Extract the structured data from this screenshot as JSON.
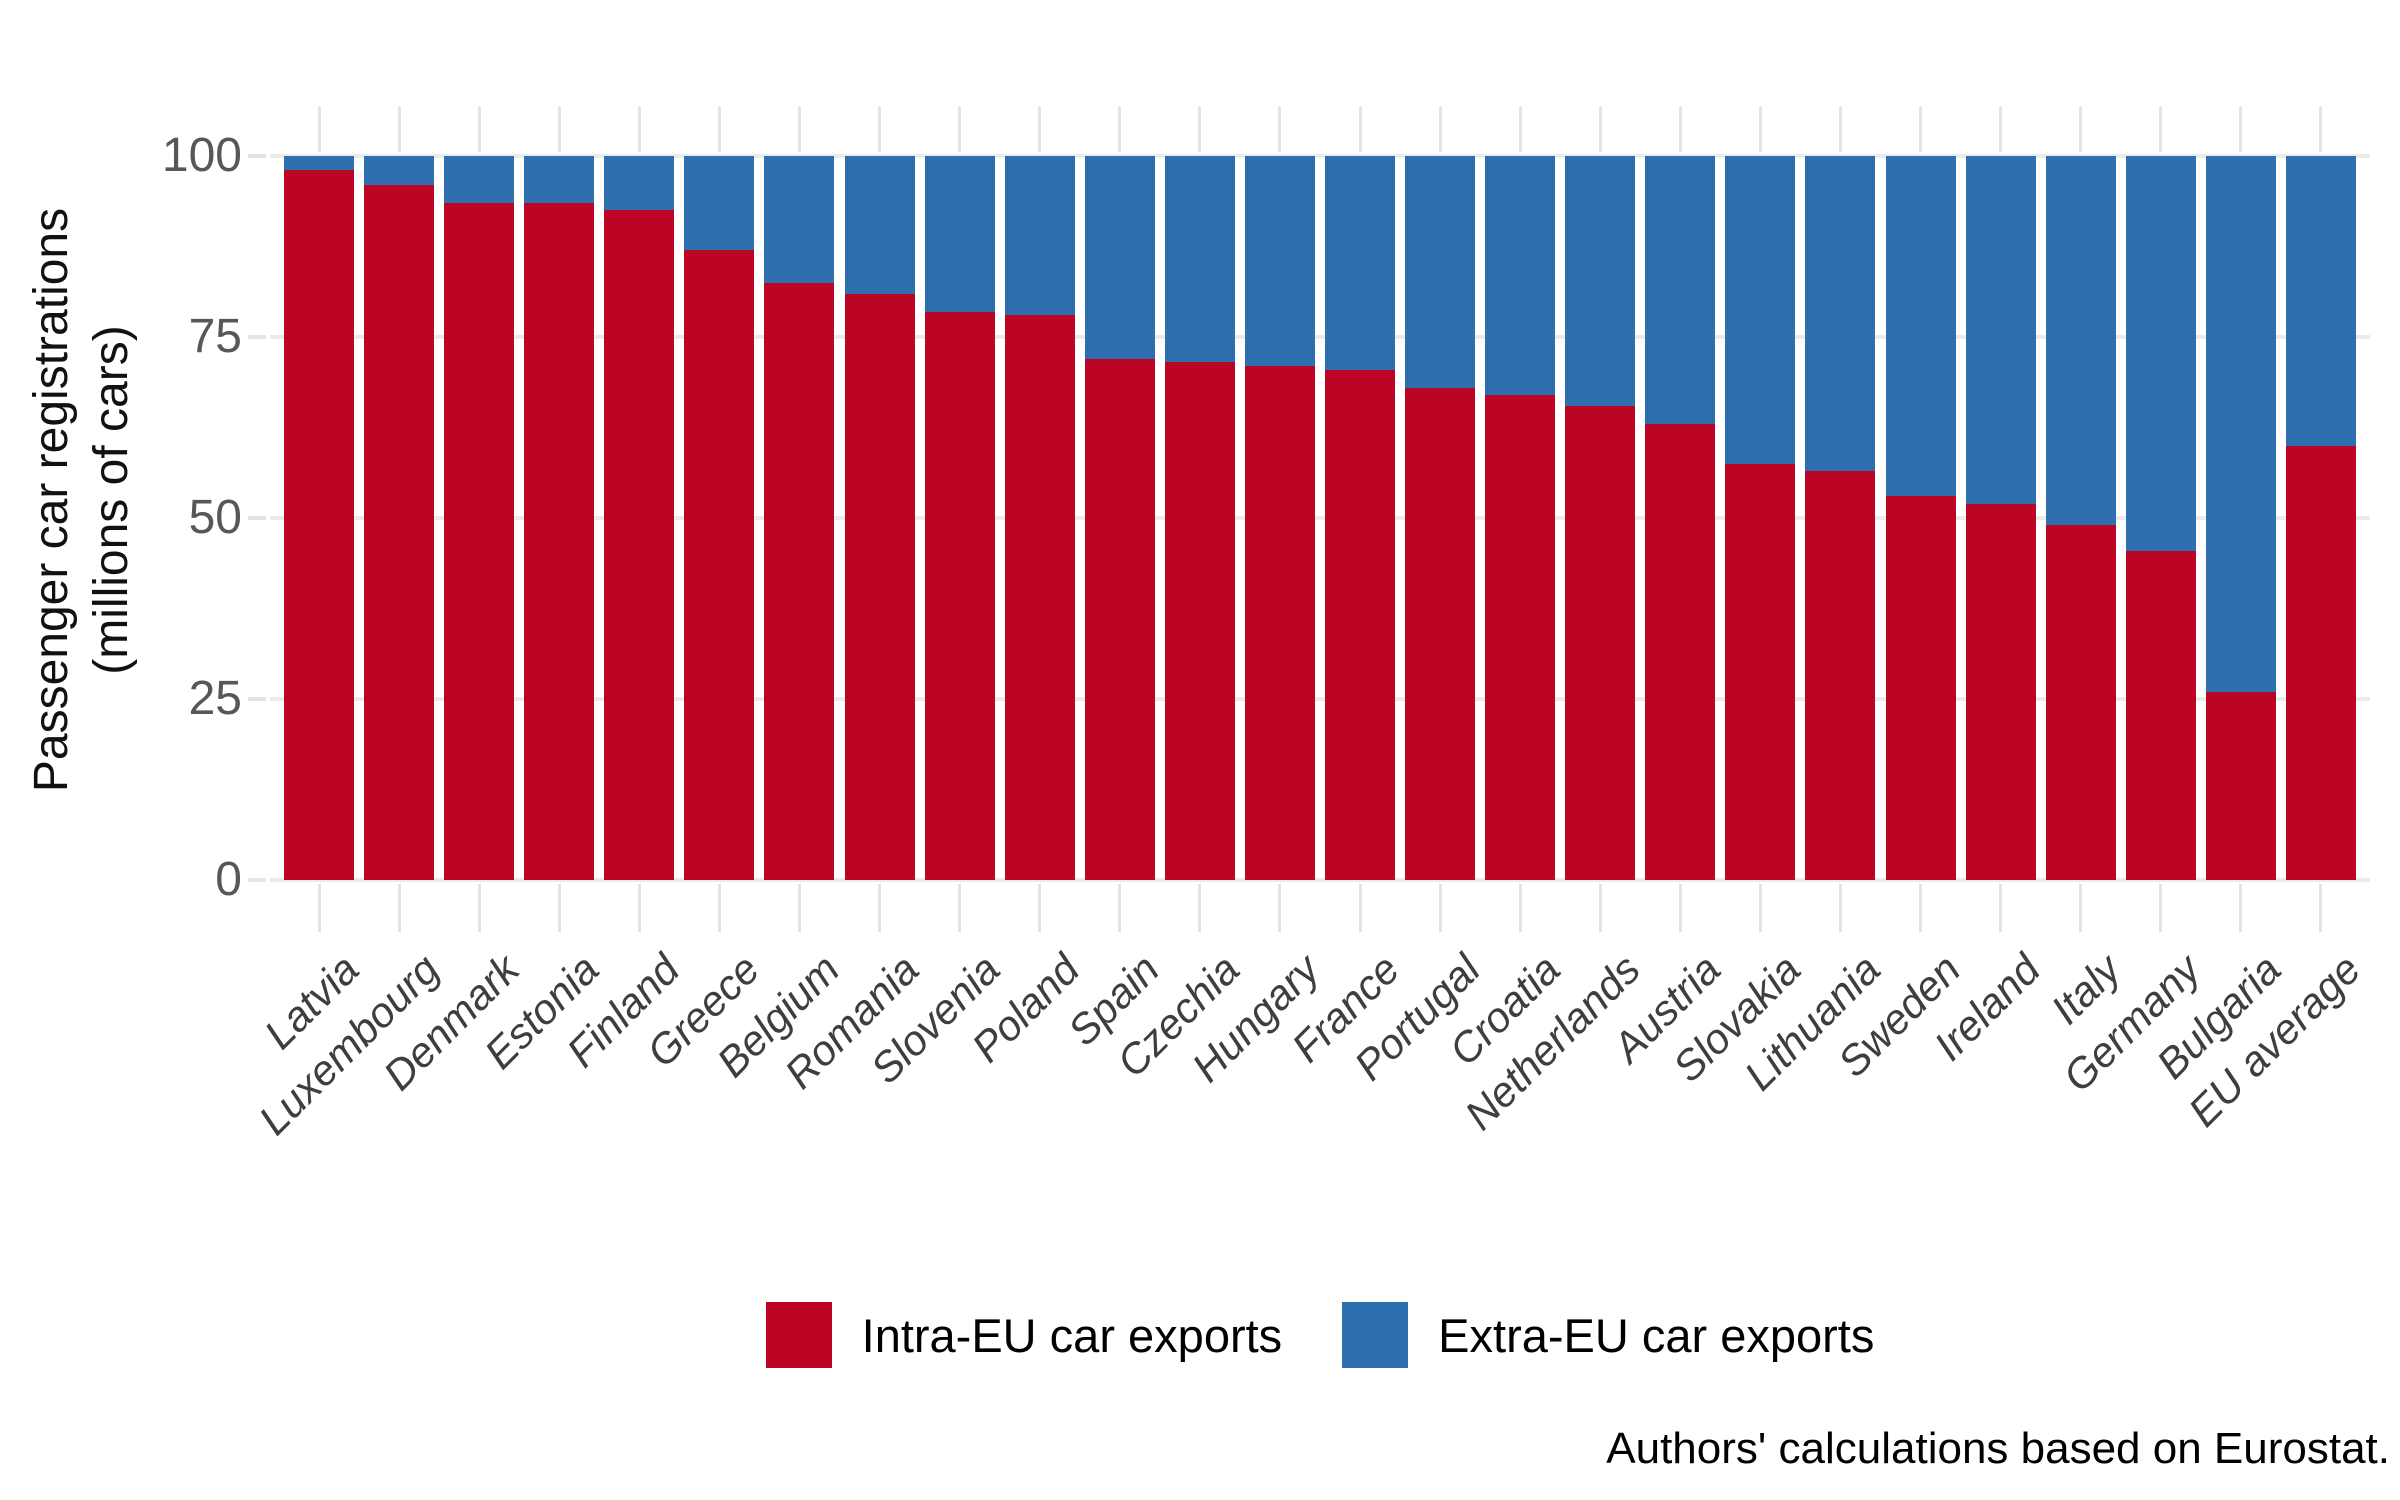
{
  "figure": {
    "background": "#ffffff",
    "grid_color": "#ebebeb",
    "tick_color": "#e4e4e4",
    "y_tick_label_color": "#575757",
    "x_label_color": "#3e3e3e",
    "y_title_color": "#111111"
  },
  "chart_data": {
    "type": "bar",
    "stacked": true,
    "orientation": "vertical",
    "title": "",
    "xlabel": "",
    "ylabel": "Passenger car registrations\n(millions of cars)",
    "ylim": [
      0,
      100
    ],
    "yticks": [
      0,
      25,
      50,
      75,
      100
    ],
    "grid": "horizontal",
    "legend_position": "bottom-center",
    "caption": "Authors' calculations based on Eurostat.",
    "categories": [
      "Latvia",
      "Luxembourg",
      "Denmark",
      "Estonia",
      "Finland",
      "Greece",
      "Belgium",
      "Romania",
      "Slovenia",
      "Poland",
      "Spain",
      "Czechia",
      "Hungary",
      "France",
      "Portugal",
      "Croatia",
      "Netherlands",
      "Austria",
      "Slovakia",
      "Lithuania",
      "Sweden",
      "Ireland",
      "Italy",
      "Germany",
      "Bulgaria",
      "EU average"
    ],
    "series": [
      {
        "name": "Intra-EU car exports",
        "color": "#bc0425",
        "values": [
          98,
          96,
          93.5,
          93.5,
          92.5,
          87,
          82.5,
          81,
          78.5,
          78,
          72,
          71.5,
          71,
          70.5,
          68,
          67,
          65.5,
          63,
          57.5,
          56.5,
          53,
          52,
          49,
          45.5,
          26,
          60
        ]
      },
      {
        "name": "Extra-EU car exports",
        "color": "#2e6fb0",
        "values": [
          2,
          4,
          6.5,
          6.5,
          7.5,
          13,
          17.5,
          19,
          21.5,
          22,
          28,
          28.5,
          29,
          29.5,
          32,
          33,
          34.5,
          37,
          42.5,
          43.5,
          47,
          48,
          51,
          54.5,
          74,
          40
        ]
      }
    ]
  }
}
